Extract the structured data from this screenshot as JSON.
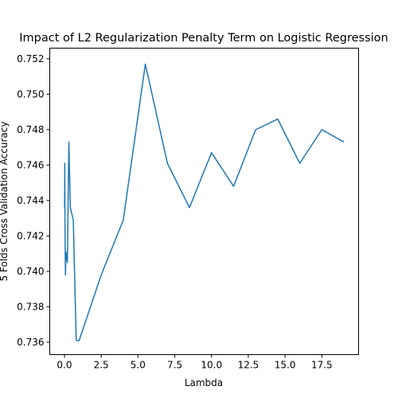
{
  "chart_data": {
    "type": "line",
    "title": "Impact of L2 Regularization Penalty Term on Logistic Regression",
    "xlabel": "Lambda",
    "ylabel": "5 Folds Cross Validation Accuracy",
    "xlim": [
      -1.0,
      20.0
    ],
    "ylim": [
      0.7353,
      0.7526
    ],
    "xticks": [
      "0.0",
      "2.5",
      "5.0",
      "7.5",
      "10.0",
      "12.5",
      "15.0",
      "17.5"
    ],
    "yticks": [
      "0.736",
      "0.738",
      "0.740",
      "0.742",
      "0.744",
      "0.746",
      "0.748",
      "0.750",
      "0.752"
    ],
    "grid": false,
    "line_color": "#1f77b4",
    "series": [
      {
        "x": [
          0.01,
          0.02,
          0.03,
          0.05,
          0.07,
          0.1,
          0.2,
          0.3,
          0.4,
          0.6,
          0.8,
          1.0,
          2.5,
          4.0,
          5.5,
          7.0,
          8.5,
          10.0,
          11.5,
          13.0,
          14.5,
          16.0,
          17.5,
          19.0
        ],
        "y": [
          0.7436,
          0.7461,
          0.7436,
          0.7411,
          0.7398,
          0.7411,
          0.7405,
          0.7473,
          0.7436,
          0.7429,
          0.7361,
          0.7361,
          0.7398,
          0.7429,
          0.7517,
          0.7461,
          0.7436,
          0.7467,
          0.7448,
          0.748,
          0.7486,
          0.7461,
          0.748,
          0.7473
        ]
      }
    ]
  }
}
